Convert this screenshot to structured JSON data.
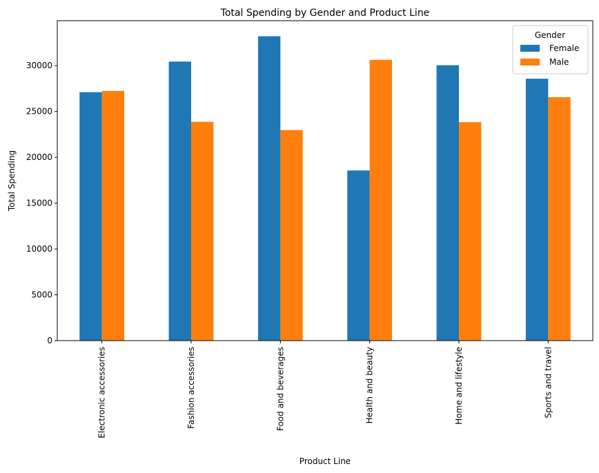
{
  "chart_data": {
    "type": "bar",
    "title": "Total Spending by Gender and Product Line",
    "xlabel": "Product Line",
    "ylabel": "Total Spending",
    "categories": [
      "Electronic accessories",
      "Fashion accessories",
      "Food and beverages",
      "Health and beauty",
      "Home and lifestyle",
      "Sports and travel"
    ],
    "series": [
      {
        "name": "Female",
        "color": "#1f77b4",
        "values": [
          27100,
          30440,
          33200,
          18560,
          30040,
          28570
        ]
      },
      {
        "name": "Male",
        "color": "#ff7f0e",
        "values": [
          27240,
          23870,
          22970,
          30630,
          23830,
          26550
        ]
      }
    ],
    "ylim": [
      0,
      34900
    ],
    "yticks": [
      0,
      5000,
      10000,
      15000,
      20000,
      25000,
      30000
    ],
    "legend": {
      "title": "Gender",
      "placement": "top-right"
    },
    "grid": false
  }
}
